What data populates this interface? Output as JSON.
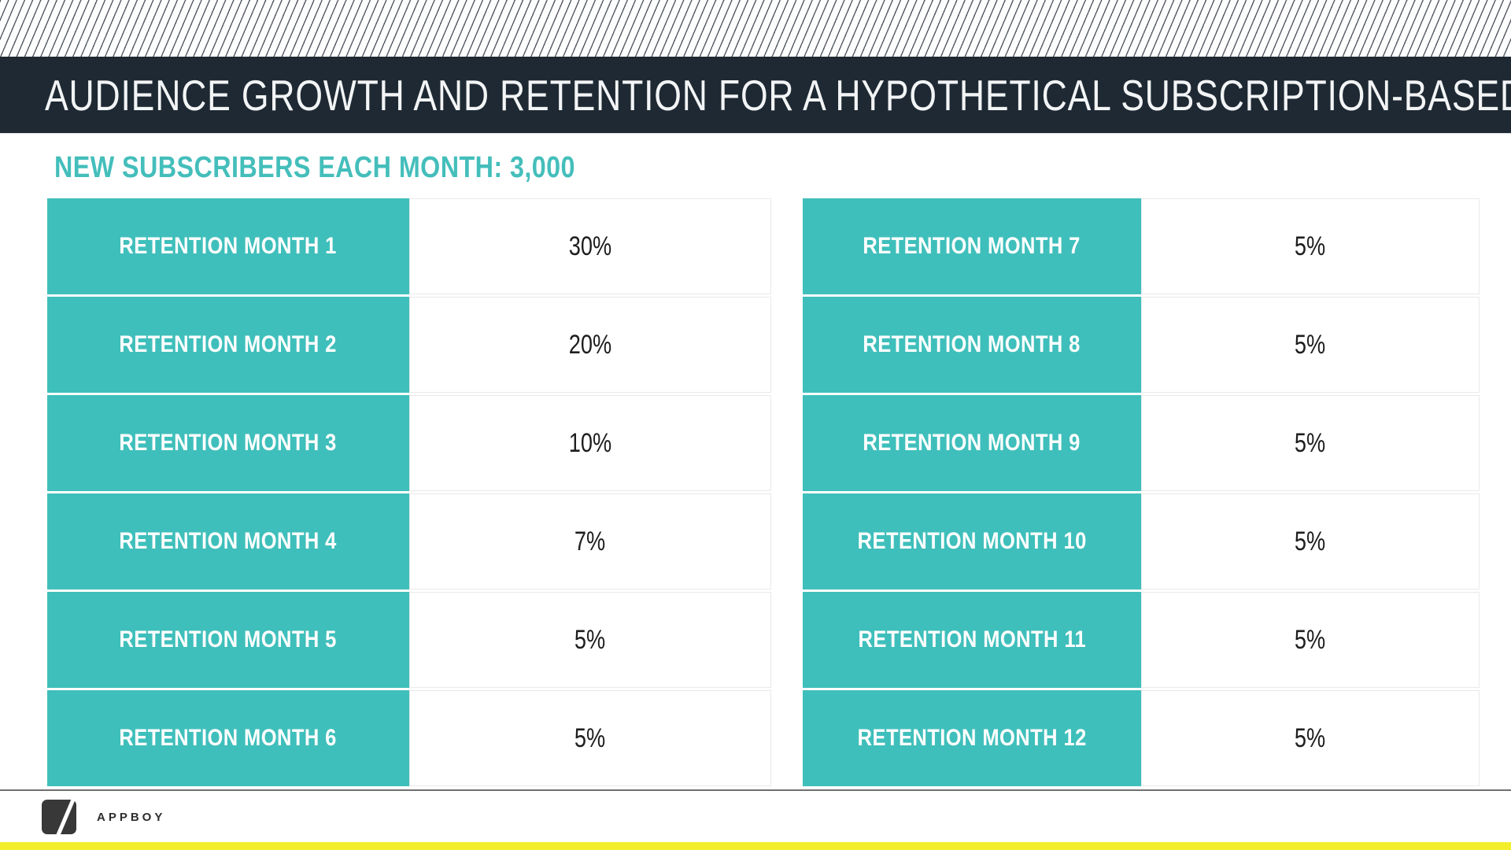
{
  "header": {
    "title": "AUDIENCE GROWTH AND RETENTION FOR A HYPOTHETICAL SUBSCRIPTION-BASED APP"
  },
  "subtitle": "NEW SUBSCRIBERS EACH MONTH: 3,000",
  "tables": [
    {
      "name": "retention-months-1-6",
      "rows": [
        {
          "label": "RETENTION MONTH 1",
          "value": "30%"
        },
        {
          "label": "RETENTION MONTH 2",
          "value": "20%"
        },
        {
          "label": "RETENTION MONTH 3",
          "value": "10%"
        },
        {
          "label": "RETENTION MONTH 4",
          "value": "7%"
        },
        {
          "label": "RETENTION MONTH 5",
          "value": "5%"
        },
        {
          "label": "RETENTION MONTH 6",
          "value": "5%"
        }
      ]
    },
    {
      "name": "retention-months-7-12",
      "rows": [
        {
          "label": "RETENTION MONTH 7",
          "value": "5%"
        },
        {
          "label": "RETENTION MONTH 8",
          "value": "5%"
        },
        {
          "label": "RETENTION MONTH 9",
          "value": "5%"
        },
        {
          "label": "RETENTION MONTH 10",
          "value": "5%"
        },
        {
          "label": "RETENTION MONTH 11",
          "value": "5%"
        },
        {
          "label": "RETENTION MONTH 12",
          "value": "5%"
        }
      ]
    }
  ],
  "footer": {
    "brand": "APPBOY",
    "logo_icon": "slash-square-icon"
  },
  "colors": {
    "teal": "#3FBFBB",
    "teal-text": "#44BEBB",
    "navy": "#1E2933",
    "title-text": "#F2F4F5",
    "hatch-line": "#565B63",
    "hatch-bg": "#FDFDFD",
    "value-text": "#1E1E1E",
    "cell-border": "#E9E9E9",
    "divider": "#6F6F6F",
    "logo-dark": "#383838",
    "brand-text": "#2D2D2D",
    "yellow": "#F2EE2C"
  }
}
